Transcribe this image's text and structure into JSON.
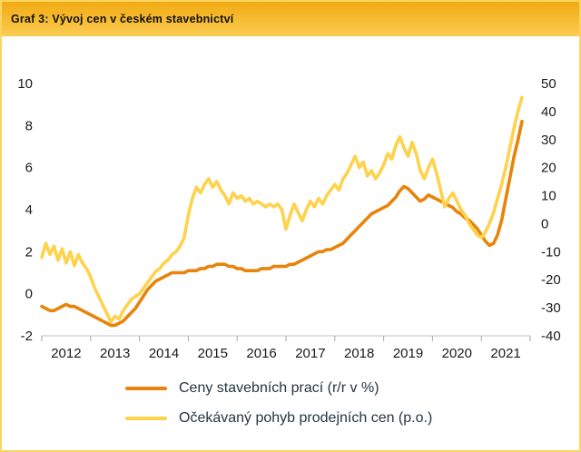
{
  "header": {
    "title": "Graf 3: Vývoj cen v českém stavebnictví"
  },
  "colors": {
    "border": "#FBD55E",
    "header_top": "#F2AA12",
    "header_bottom": "#FACC52",
    "axis_text": "#1a1a1a",
    "axis_line": "#C0C0C0",
    "tick_mark": "#A6A6A6",
    "legend_text": "#243640",
    "series_prices": "#E8830C",
    "series_expected": "#FFD24C"
  },
  "legend": [
    {
      "label": "Ceny stavebních prací (r/r v %)"
    },
    {
      "label": "Očekávaný pohyb prodejních cen (p.o.)"
    }
  ],
  "chart_data": {
    "type": "line",
    "title": "Graf 3: Vývoj cen v českém stavebnictví",
    "grid": false,
    "legend_position": "bottom",
    "x_start_year": 2012,
    "x_step_months": 1,
    "x_axis_ticks": [
      2012,
      2013,
      2014,
      2015,
      2016,
      2017,
      2018,
      2019,
      2020,
      2021
    ],
    "x_domain": [
      2012,
      2022
    ],
    "left_axis": {
      "min": -2,
      "max": 10,
      "ticks": [
        10,
        8,
        6,
        4,
        2,
        0,
        -2
      ]
    },
    "right_axis": {
      "min": -40,
      "max": 50,
      "ticks": [
        50,
        40,
        30,
        20,
        10,
        0,
        -10,
        -20,
        -30,
        -40
      ]
    },
    "series": [
      {
        "name": "Ceny stavebních prací (r/r v %)",
        "axis": "left",
        "color": "#E8830C",
        "values": [
          -0.6,
          -0.7,
          -0.8,
          -0.8,
          -0.7,
          -0.6,
          -0.5,
          -0.6,
          -0.6,
          -0.7,
          -0.8,
          -0.9,
          -1.0,
          -1.1,
          -1.2,
          -1.3,
          -1.4,
          -1.5,
          -1.5,
          -1.4,
          -1.3,
          -1.1,
          -0.9,
          -0.7,
          -0.4,
          -0.1,
          0.2,
          0.4,
          0.6,
          0.7,
          0.8,
          0.9,
          1.0,
          1.0,
          1.0,
          1.0,
          1.1,
          1.1,
          1.1,
          1.2,
          1.2,
          1.3,
          1.3,
          1.4,
          1.4,
          1.4,
          1.3,
          1.3,
          1.2,
          1.2,
          1.1,
          1.1,
          1.1,
          1.1,
          1.2,
          1.2,
          1.2,
          1.3,
          1.3,
          1.3,
          1.3,
          1.4,
          1.4,
          1.5,
          1.6,
          1.7,
          1.8,
          1.9,
          2.0,
          2.0,
          2.1,
          2.1,
          2.2,
          2.3,
          2.4,
          2.6,
          2.8,
          3.0,
          3.2,
          3.4,
          3.6,
          3.8,
          3.9,
          4.0,
          4.1,
          4.2,
          4.4,
          4.6,
          4.9,
          5.1,
          5.0,
          4.8,
          4.6,
          4.4,
          4.5,
          4.7,
          4.6,
          4.5,
          4.4,
          4.3,
          4.2,
          4.1,
          3.9,
          3.8,
          3.6,
          3.5,
          3.3,
          3.1,
          2.8,
          2.5,
          2.3,
          2.4,
          2.8,
          3.5,
          4.5,
          5.5,
          6.5,
          7.3,
          8.2
        ]
      },
      {
        "name": "Očekávaný pohyb prodejních cen (p.o.)",
        "axis": "right",
        "color": "#FFD24C",
        "values": [
          -12,
          -7,
          -11,
          -8,
          -13,
          -9,
          -14,
          -10,
          -15,
          -11,
          -14,
          -16,
          -19,
          -23,
          -26,
          -29,
          -32,
          -35,
          -33,
          -34,
          -31,
          -29,
          -27,
          -26,
          -25,
          -23,
          -21,
          -19,
          -17,
          -16,
          -14,
          -13,
          -11,
          -10,
          -8,
          -5,
          3,
          9,
          13,
          11,
          14,
          16,
          13,
          15,
          12,
          10,
          7,
          11,
          9,
          10,
          8,
          9,
          7,
          8,
          7,
          6,
          7,
          6,
          7,
          5,
          -2,
          3,
          7,
          4,
          1,
          5,
          8,
          6,
          9,
          7,
          10,
          12,
          14,
          12,
          16,
          18,
          21,
          24,
          20,
          22,
          17,
          19,
          16,
          18,
          21,
          25,
          23,
          28,
          31,
          27,
          24,
          29,
          25,
          19,
          16,
          20,
          23,
          18,
          12,
          6,
          9,
          11,
          8,
          5,
          3,
          0,
          -2,
          -4,
          -5,
          -3,
          0,
          4,
          9,
          14,
          20,
          27,
          34,
          40,
          45
        ]
      }
    ]
  }
}
